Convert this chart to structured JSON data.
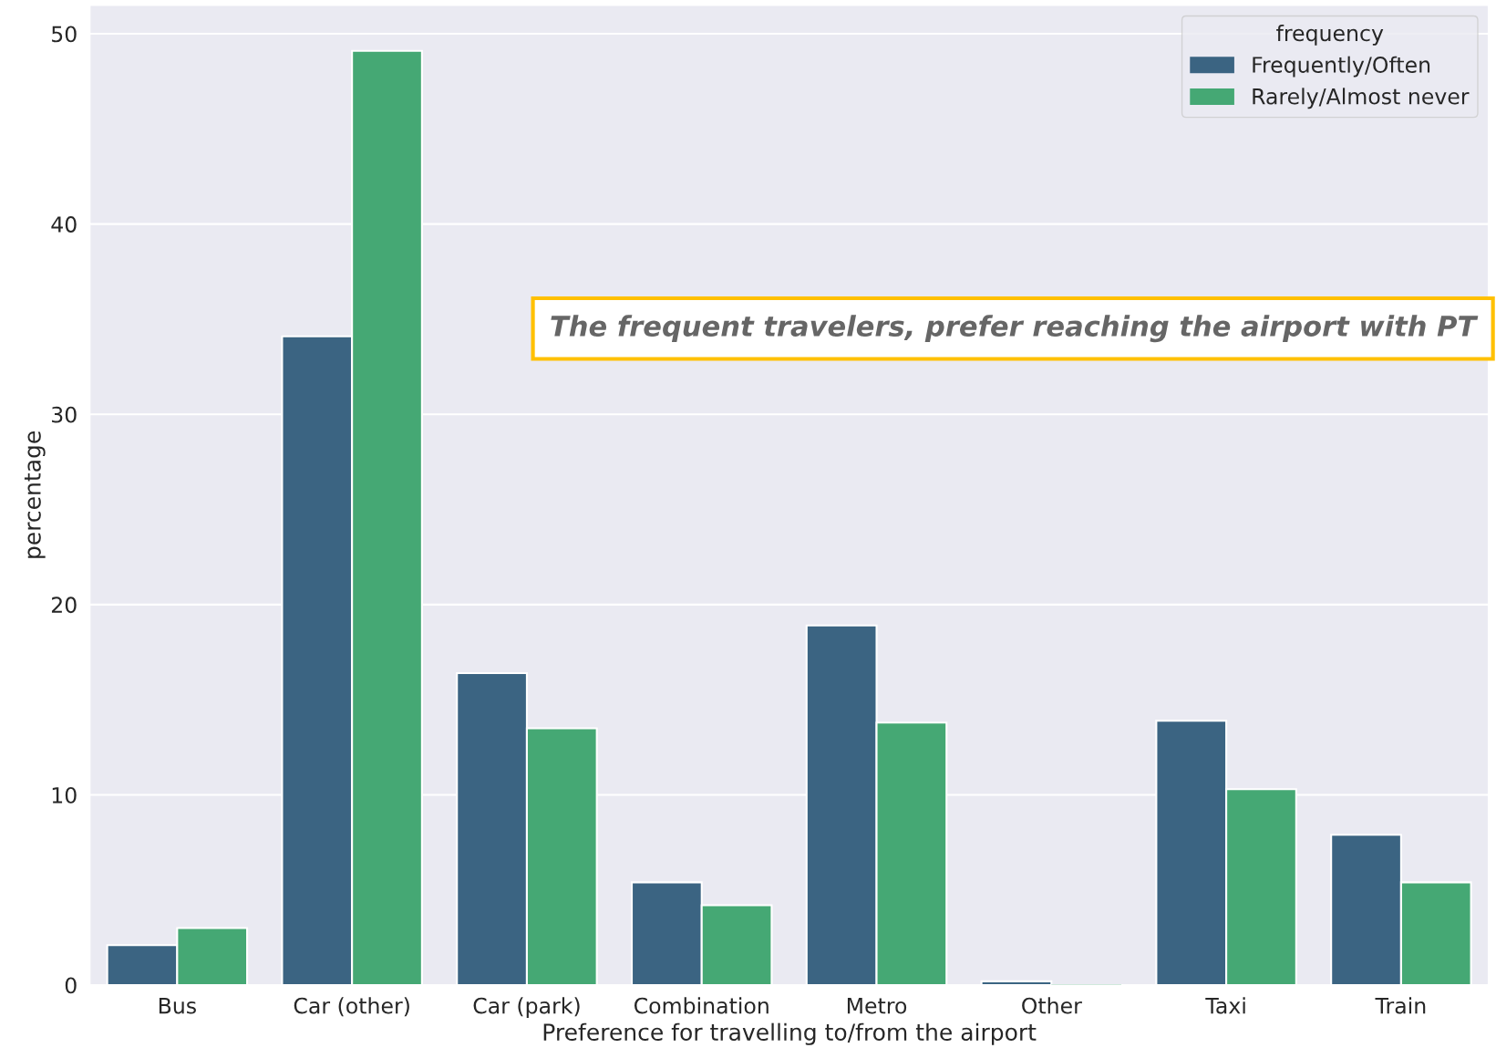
{
  "chart_data": {
    "type": "bar",
    "xlabel": "Preference for travelling to/from the airport",
    "ylabel": "percentage",
    "legend_title": "frequency",
    "categories": [
      "Bus",
      "Car (other)",
      "Car (park)",
      "Combination",
      "Metro",
      "Other",
      "Taxi",
      "Train"
    ],
    "series": [
      {
        "name": "Frequently/Often",
        "color": "#3b6482",
        "values": [
          2.1,
          34.1,
          16.4,
          5.4,
          18.9,
          0.2,
          13.9,
          7.9
        ]
      },
      {
        "name": "Rarely/Almost never",
        "color": "#45a874",
        "values": [
          3.0,
          49.1,
          13.5,
          4.2,
          13.8,
          0,
          10.3,
          5.4
        ]
      }
    ],
    "ylim": [
      0,
      51.5
    ],
    "yticks": [
      0,
      10,
      20,
      30,
      40,
      50
    ],
    "grid": "y",
    "legend": "top right",
    "annotations": [
      "The frequent travelers, prefer reaching the airport with PT"
    ]
  }
}
